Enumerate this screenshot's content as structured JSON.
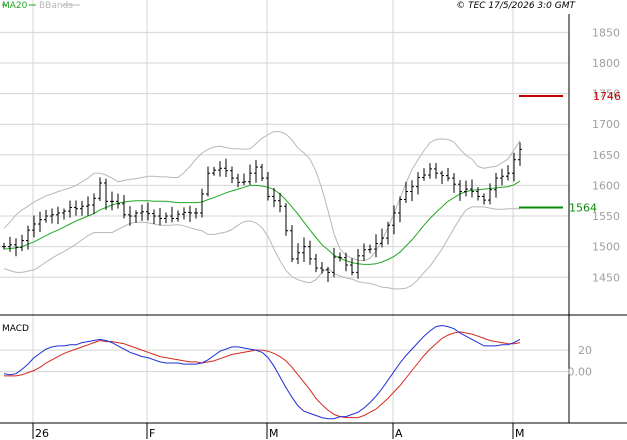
{
  "header": {
    "legend_ma": "MA20",
    "legend_bbands": "BBands",
    "copyright": "© TEC 17/5/2026 3:0 GMT"
  },
  "colors": {
    "background": "#ffffff",
    "grid": "#d4d4d4",
    "frame": "#000000",
    "price_bar": "#000000",
    "ma20": "#21a821",
    "bbands": "#b8b8b8",
    "macd_line": "#1f2fd6",
    "signal_line": "#d42a1f",
    "resistance": "#c40000",
    "support": "#0a8a0a",
    "tick_label": "#a0a0a0"
  },
  "price_axis": {
    "ticks": [
      1450,
      1500,
      1550,
      1600,
      1650,
      1700,
      1750,
      1800,
      1850
    ],
    "tick_labels": [
      "1450",
      "1500",
      "1550",
      "1600",
      "1650",
      "1700",
      "1750",
      "1800",
      "1850"
    ],
    "range": [
      1390,
      1880
    ]
  },
  "macd_panel": {
    "title": "MACD",
    "ticks": [
      0,
      20
    ],
    "tick_labels": [
      "0.00",
      "20"
    ],
    "range": [
      -48,
      50
    ]
  },
  "x_axis": {
    "month_labels": [
      {
        "label": "26",
        "index": 5
      },
      {
        "label": "F",
        "index": 24
      },
      {
        "label": "M",
        "index": 44
      },
      {
        "label": "A",
        "index": 65
      },
      {
        "label": "M",
        "index": 85
      }
    ]
  },
  "levels": {
    "resistance": {
      "value": 1746,
      "label": "1746"
    },
    "support": {
      "value": 1564,
      "label": "1564"
    }
  },
  "chart_data": {
    "type": "line",
    "title": "",
    "indices": {
      "close": [
        1500,
        1503,
        1499,
        1510,
        1527,
        1537,
        1544,
        1550,
        1552,
        1555,
        1558,
        1564,
        1562,
        1566,
        1568,
        1579,
        1604,
        1574,
        1574,
        1570,
        1552,
        1550,
        1555,
        1557,
        1554,
        1550,
        1546,
        1550,
        1546,
        1553,
        1556,
        1555,
        1555,
        1586,
        1620,
        1625,
        1628,
        1624,
        1612,
        1605,
        1606,
        1620,
        1630,
        1612,
        1582,
        1575,
        1566,
        1526,
        1480,
        1490,
        1500,
        1480,
        1465,
        1462,
        1458,
        1483,
        1482,
        1470,
        1458,
        1485,
        1495,
        1496,
        1505,
        1514,
        1535,
        1555,
        1577,
        1590,
        1598,
        1613,
        1617,
        1627,
        1620,
        1616,
        1612,
        1602,
        1590,
        1594,
        1590,
        1582,
        1576,
        1593,
        1612,
        1615,
        1620,
        1642,
        1659
      ],
      "ma20": [
        1496,
        1497,
        1498,
        1500,
        1504,
        1508,
        1513,
        1518,
        1523,
        1527,
        1532,
        1537,
        1542,
        1546,
        1550,
        1554,
        1560,
        1564,
        1568,
        1571,
        1573,
        1574,
        1575,
        1575,
        1575,
        1574,
        1574,
        1574,
        1573,
        1572,
        1572,
        1572,
        1572,
        1573,
        1577,
        1580,
        1584,
        1588,
        1591,
        1594,
        1597,
        1600,
        1600,
        1599,
        1597,
        1593,
        1586,
        1576,
        1565,
        1553,
        1540,
        1527,
        1515,
        1503,
        1495,
        1486,
        1481,
        1477,
        1474,
        1472,
        1471,
        1471,
        1472,
        1475,
        1479,
        1484,
        1491,
        1501,
        1511,
        1523,
        1535,
        1546,
        1556,
        1565,
        1574,
        1580,
        1586,
        1590,
        1592,
        1593,
        1594,
        1595,
        1596,
        1597,
        1598,
        1601,
        1607
      ],
      "bb_upper": [
        1530,
        1540,
        1552,
        1560,
        1566,
        1573,
        1578,
        1583,
        1586,
        1590,
        1593,
        1596,
        1600,
        1606,
        1612,
        1620,
        1620,
        1617,
        1612,
        1606,
        1608,
        1610,
        1611,
        1613,
        1615,
        1615,
        1614,
        1614,
        1613,
        1613,
        1621,
        1631,
        1643,
        1653,
        1659,
        1663,
        1664,
        1662,
        1660,
        1660,
        1659,
        1660,
        1668,
        1677,
        1683,
        1688,
        1688,
        1684,
        1674,
        1661,
        1653,
        1643,
        1623,
        1594,
        1559,
        1521,
        1496,
        1486,
        1481,
        1478,
        1477,
        1481,
        1493,
        1510,
        1531,
        1554,
        1579,
        1604,
        1626,
        1642,
        1657,
        1670,
        1675,
        1676,
        1675,
        1671,
        1659,
        1649,
        1643,
        1631,
        1628,
        1630,
        1631,
        1637,
        1643,
        1658,
        1673
      ],
      "bb_lower": [
        1464,
        1461,
        1458,
        1458,
        1460,
        1462,
        1468,
        1475,
        1481,
        1487,
        1492,
        1498,
        1504,
        1511,
        1518,
        1523,
        1523,
        1523,
        1523,
        1528,
        1533,
        1538,
        1540,
        1540,
        1539,
        1537,
        1535,
        1535,
        1535,
        1536,
        1534,
        1531,
        1528,
        1526,
        1520,
        1520,
        1522,
        1524,
        1528,
        1535,
        1541,
        1542,
        1539,
        1531,
        1517,
        1496,
        1477,
        1461,
        1451,
        1446,
        1443,
        1441,
        1446,
        1458,
        1465,
        1456,
        1452,
        1449,
        1447,
        1443,
        1441,
        1440,
        1437,
        1434,
        1433,
        1431,
        1431,
        1432,
        1437,
        1446,
        1458,
        1468,
        1482,
        1496,
        1513,
        1530,
        1546,
        1560,
        1565,
        1565,
        1565,
        1563,
        1561,
        1561,
        1562,
        1562,
        1562
      ],
      "macd": [
        -2,
        -3,
        -2,
        2,
        7,
        13,
        17,
        21,
        23,
        24,
        24,
        25,
        25,
        27,
        28,
        29,
        30,
        29,
        27,
        24,
        21,
        18,
        16,
        14,
        13,
        11,
        9,
        8,
        8,
        8,
        7,
        7,
        7,
        8,
        11,
        15,
        19,
        21,
        23,
        23,
        22,
        21,
        20,
        18,
        13,
        5,
        -5,
        -15,
        -24,
        -32,
        -37,
        -39,
        -41,
        -43,
        -44,
        -44,
        -42,
        -42,
        -40,
        -38,
        -34,
        -29,
        -23,
        -16,
        -8,
        0,
        8,
        15,
        21,
        27,
        33,
        38,
        42,
        43,
        42,
        40,
        36,
        33,
        30,
        27,
        24,
        24,
        24,
        25,
        25,
        27,
        30
      ],
      "signal": [
        -4,
        -4,
        -4,
        -3,
        -1,
        1,
        4,
        8,
        11,
        14,
        17,
        19,
        21,
        23,
        25,
        27,
        29,
        28,
        28,
        27,
        26,
        24,
        22,
        20,
        18,
        16,
        14,
        13,
        12,
        11,
        10,
        9,
        9,
        8,
        9,
        10,
        12,
        14,
        16,
        17,
        18,
        19,
        20,
        20,
        19,
        17,
        14,
        10,
        4,
        -3,
        -10,
        -17,
        -25,
        -31,
        -36,
        -40,
        -42,
        -43,
        -43,
        -43,
        -41,
        -38,
        -35,
        -30,
        -25,
        -19,
        -13,
        -6,
        1,
        8,
        15,
        21,
        26,
        31,
        34,
        36,
        37,
        36,
        35,
        33,
        31,
        29,
        28,
        27,
        26,
        26,
        27
      ]
    },
    "title_note": ""
  }
}
